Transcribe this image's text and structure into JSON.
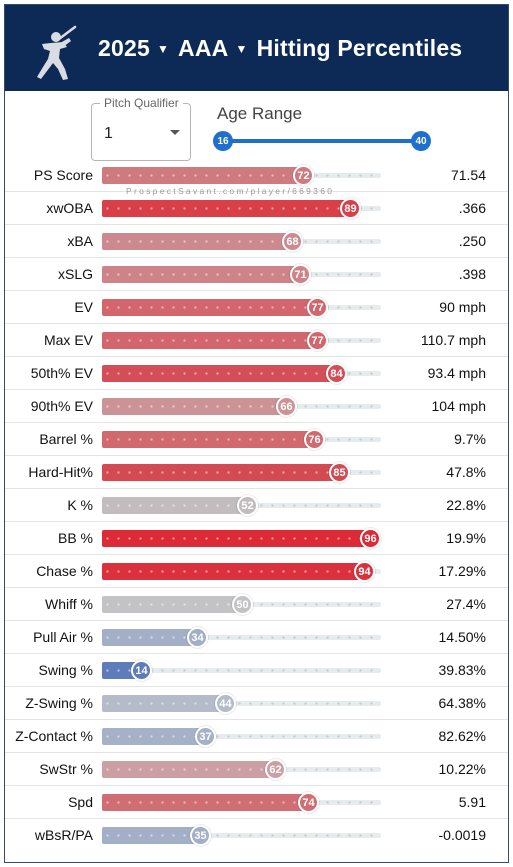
{
  "header": {
    "year": "2025",
    "level": "AAA",
    "title": "Hitting Percentiles",
    "logo_icon": "batter-logo-icon"
  },
  "filters": {
    "pitch_qualifier_label": "Pitch Qualifier",
    "pitch_qualifier_value": "1",
    "age_range_label": "Age Range",
    "age_min": "16",
    "age_max": "40"
  },
  "watermark": "ProspectSavant.com/player/669360",
  "colors": {
    "header_bg": "#0d2a57",
    "slider": "#1f6fcf"
  },
  "metrics": [
    {
      "label": "PS Score",
      "percentile": 72,
      "value": "71.54",
      "color": "#cf7a7e"
    },
    {
      "label": "xwOBA",
      "percentile": 89,
      "value": ".366",
      "color": "#d83f49"
    },
    {
      "label": "xBA",
      "percentile": 68,
      "value": ".250",
      "color": "#cc8a8e"
    },
    {
      "label": "xSLG",
      "percentile": 71,
      "value": ".398",
      "color": "#cd8387"
    },
    {
      "label": "EV",
      "percentile": 77,
      "value": "90 mph",
      "color": "#d2666c"
    },
    {
      "label": "Max EV",
      "percentile": 77,
      "value": "110.7 mph",
      "color": "#d2666c"
    },
    {
      "label": "50th% EV",
      "percentile": 84,
      "value": "93.4 mph",
      "color": "#d34e56"
    },
    {
      "label": "90th% EV",
      "percentile": 66,
      "value": "104 mph",
      "color": "#cb9396"
    },
    {
      "label": "Barrel %",
      "percentile": 76,
      "value": "9.7%",
      "color": "#d1696f"
    },
    {
      "label": "Hard-Hit%",
      "percentile": 85,
      "value": "47.8%",
      "color": "#d44a52"
    },
    {
      "label": "K %",
      "percentile": 52,
      "value": "22.8%",
      "color": "#c2bcbf"
    },
    {
      "label": "BB %",
      "percentile": 96,
      "value": "19.9%",
      "color": "#dd2a37"
    },
    {
      "label": "Chase %",
      "percentile": 94,
      "value": "17.29%",
      "color": "#da313d"
    },
    {
      "label": "Whiff %",
      "percentile": 50,
      "value": "27.4%",
      "color": "#c3c3c6"
    },
    {
      "label": "Pull Air %",
      "percentile": 34,
      "value": "14.50%",
      "color": "#a2afc6"
    },
    {
      "label": "Swing %",
      "percentile": 14,
      "value": "39.83%",
      "color": "#5e7cba"
    },
    {
      "label": "Z-Swing %",
      "percentile": 44,
      "value": "64.38%",
      "color": "#b5bbc8"
    },
    {
      "label": "Z-Contact %",
      "percentile": 37,
      "value": "82.62%",
      "color": "#a5b1c6"
    },
    {
      "label": "SwStr %",
      "percentile": 62,
      "value": "10.22%",
      "color": "#cb9fa3"
    },
    {
      "label": "Spd",
      "percentile": 74,
      "value": "5.91",
      "color": "#d06e73"
    },
    {
      "label": "wBsR/PA",
      "percentile": 35,
      "value": "-0.0019",
      "color": "#a3afc6"
    }
  ]
}
